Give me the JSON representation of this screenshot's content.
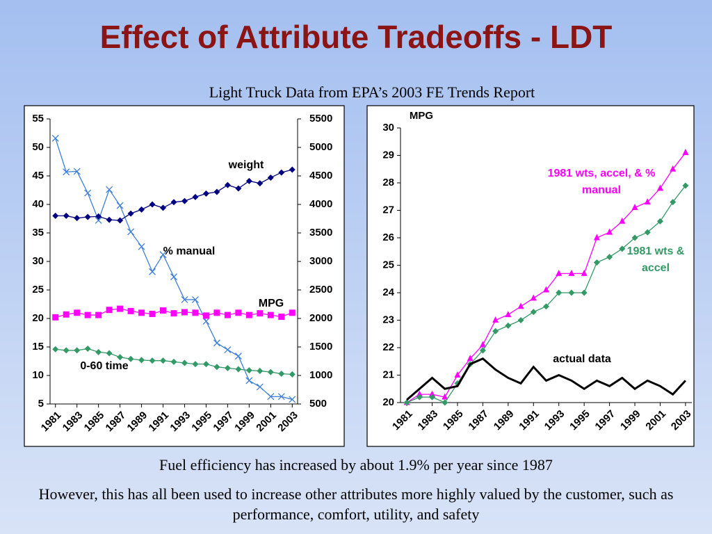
{
  "title": "Effect of Attribute Tradeoffs - LDT",
  "subtitle": "Light Truck Data from EPA’s 2003 FE Trends Report",
  "footer": [
    "Fuel efficiency has increased by about 1.9% per year since 1987",
    "However, this has all been used to increase other attributes more highly valued by the customer, such as performance, comfort, utility, and safety"
  ],
  "chart_data": [
    {
      "type": "line",
      "x": [
        1981,
        1982,
        1983,
        1984,
        1985,
        1986,
        1987,
        1988,
        1989,
        1990,
        1991,
        1992,
        1993,
        1994,
        1995,
        1996,
        1997,
        1998,
        1999,
        2000,
        2001,
        2002,
        2003
      ],
      "xlim": [
        1980.5,
        2003.5
      ],
      "xticks": [
        1981,
        1983,
        1985,
        1987,
        1989,
        1991,
        1993,
        1995,
        1997,
        1999,
        2001,
        2003
      ],
      "ylim": [
        5,
        55
      ],
      "yticks": [
        5,
        10,
        15,
        20,
        25,
        30,
        35,
        40,
        45,
        50,
        55
      ],
      "y2lim": [
        500,
        5500
      ],
      "y2ticks": [
        500,
        1000,
        1500,
        2000,
        2500,
        3000,
        3500,
        4000,
        4500,
        5000,
        5500
      ],
      "series": [
        {
          "name": "% manual",
          "color": "#3d7fd9",
          "marker": "x",
          "linewidth": 1.3,
          "values": [
            51.6,
            45.7,
            45.8,
            42,
            37.2,
            42.6,
            39.8,
            35.2,
            32.6,
            28.2,
            31.2,
            27.3,
            23.3,
            23.3,
            19.5,
            15.7,
            14.5,
            13.4,
            9.1,
            8.0,
            6.3,
            6.3,
            5.8
          ]
        },
        {
          "name": "weight",
          "color": "#000080",
          "marker": "diamond",
          "linewidth": 1.3,
          "axis": "y2",
          "values": [
            3800,
            3800,
            3760,
            3780,
            3790,
            3730,
            3720,
            3840,
            3910,
            4000,
            3940,
            4040,
            4060,
            4130,
            4190,
            4220,
            4340,
            4280,
            4410,
            4370,
            4470,
            4560,
            4610
          ]
        },
        {
          "name": "MPG",
          "color": "#ff00ff",
          "marker": "square",
          "linewidth": 1.3,
          "values": [
            20.2,
            20.7,
            21.0,
            20.6,
            20.6,
            21.5,
            21.7,
            21.3,
            21.0,
            20.8,
            21.4,
            20.9,
            21.1,
            21.0,
            20.5,
            21.0,
            20.6,
            21.0,
            20.6,
            20.9,
            20.6,
            20.3,
            21.0
          ]
        },
        {
          "name": "0-60 time",
          "color": "#339966",
          "marker": "diamond",
          "linewidth": 1.3,
          "values": [
            14.6,
            14.4,
            14.4,
            14.7,
            14.1,
            13.9,
            13.2,
            12.9,
            12.7,
            12.6,
            12.6,
            12.4,
            12.2,
            12.0,
            12.0,
            11.5,
            11.3,
            11.1,
            10.9,
            10.8,
            10.6,
            10.3,
            10.2
          ]
        }
      ]
    },
    {
      "type": "line",
      "ylabel": "MPG",
      "x": [
        1981,
        1982,
        1983,
        1984,
        1985,
        1986,
        1987,
        1988,
        1989,
        1990,
        1991,
        1992,
        1993,
        1994,
        1995,
        1996,
        1997,
        1998,
        1999,
        2000,
        2001,
        2002,
        2003
      ],
      "xlim": [
        1980.5,
        2003.5
      ],
      "xticks": [
        1981,
        1983,
        1985,
        1987,
        1989,
        1991,
        1993,
        1995,
        1997,
        1999,
        2001,
        2003
      ],
      "ylim": [
        20,
        30
      ],
      "yticks": [
        20,
        21,
        22,
        23,
        24,
        25,
        26,
        27,
        28,
        29,
        30
      ],
      "series": [
        {
          "name": "1981 wts, accel, & % manual",
          "color": "#ff00ff",
          "marker": "triangle",
          "linewidth": 1.3,
          "values": [
            20.0,
            20.3,
            20.3,
            20.2,
            21.0,
            21.6,
            22.1,
            23.0,
            23.2,
            23.5,
            23.8,
            24.1,
            24.7,
            24.7,
            24.7,
            26.0,
            26.2,
            26.6,
            27.1,
            27.3,
            27.8,
            28.5,
            29.1
          ]
        },
        {
          "name": "1981 wts & accel",
          "color": "#339966",
          "marker": "diamond",
          "linewidth": 1.3,
          "values": [
            20.0,
            20.2,
            20.2,
            20.0,
            20.7,
            21.4,
            21.9,
            22.6,
            22.8,
            23.0,
            23.3,
            23.5,
            24.0,
            24.0,
            24.0,
            25.1,
            25.3,
            25.6,
            26.0,
            26.2,
            26.6,
            27.3,
            27.9
          ]
        },
        {
          "name": "actual data",
          "color": "#000000",
          "linewidth": 3,
          "values": [
            20.1,
            20.5,
            20.9,
            20.5,
            20.6,
            21.4,
            21.6,
            21.2,
            20.9,
            20.7,
            21.3,
            20.8,
            21.0,
            20.8,
            20.5,
            20.8,
            20.6,
            20.9,
            20.5,
            20.8,
            20.6,
            20.3,
            20.8
          ]
        }
      ]
    }
  ]
}
